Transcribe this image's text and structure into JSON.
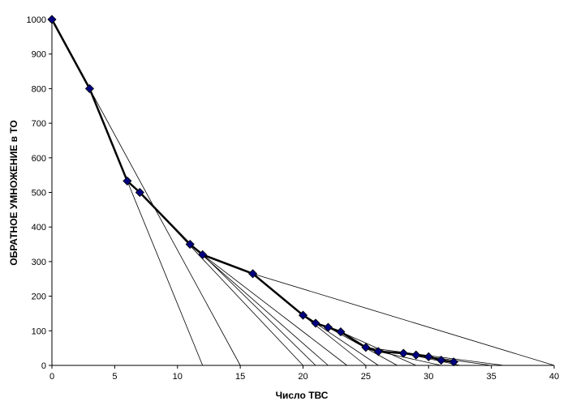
{
  "chart_data": {
    "type": "scatter",
    "xlabel": "Число ТВС",
    "ylabel": "ОБРАТНОЕ УМНОЖЕНИЕ в ТО",
    "xlim": [
      0,
      40
    ],
    "ylim": [
      0,
      1000
    ],
    "xticks": [
      0,
      5,
      10,
      15,
      20,
      25,
      30,
      35,
      40
    ],
    "yticks": [
      0,
      100,
      200,
      300,
      400,
      500,
      600,
      700,
      800,
      900,
      1000
    ],
    "grid": false,
    "legend": "none",
    "colors": {
      "curve": "#000000",
      "marker_fill": "#000080",
      "marker_edge": "#000000",
      "tangent": "#000000"
    },
    "series": [
      {
        "marker": "diamond",
        "x": [
          0,
          3,
          6,
          7,
          11,
          12,
          16,
          20,
          21,
          22,
          23,
          25,
          26,
          28,
          29,
          30,
          31,
          32
        ],
        "y": [
          1000,
          800,
          533,
          500,
          350,
          320,
          265,
          145,
          122,
          110,
          97,
          52,
          40,
          35,
          30,
          25,
          15,
          10
        ]
      }
    ],
    "extrapolation_lines": [
      {
        "from": [
          3,
          800
        ],
        "to": [
          15,
          0
        ]
      },
      {
        "from": [
          6,
          533
        ],
        "to": [
          12,
          0
        ]
      },
      {
        "from": [
          7,
          500
        ],
        "to": [
          20,
          0
        ]
      },
      {
        "from": [
          11,
          350
        ],
        "to": [
          22,
          0
        ]
      },
      {
        "from": [
          12,
          320
        ],
        "to": [
          21,
          0
        ]
      },
      {
        "from": [
          12,
          320
        ],
        "to": [
          23.5,
          0
        ]
      },
      {
        "from": [
          16,
          265
        ],
        "to": [
          40,
          0
        ]
      },
      {
        "from": [
          20,
          145
        ],
        "to": [
          25,
          0
        ]
      },
      {
        "from": [
          21,
          122
        ],
        "to": [
          26,
          0
        ]
      },
      {
        "from": [
          22,
          110
        ],
        "to": [
          27.5,
          0
        ]
      },
      {
        "from": [
          23,
          97
        ],
        "to": [
          29,
          0
        ]
      },
      {
        "from": [
          25,
          52
        ],
        "to": [
          36,
          0
        ]
      },
      {
        "from": [
          26,
          40
        ],
        "to": [
          31,
          0
        ]
      },
      {
        "from": [
          28,
          35
        ],
        "to": [
          32.5,
          0
        ]
      },
      {
        "from": [
          29,
          30
        ],
        "to": [
          35,
          0
        ]
      }
    ]
  }
}
